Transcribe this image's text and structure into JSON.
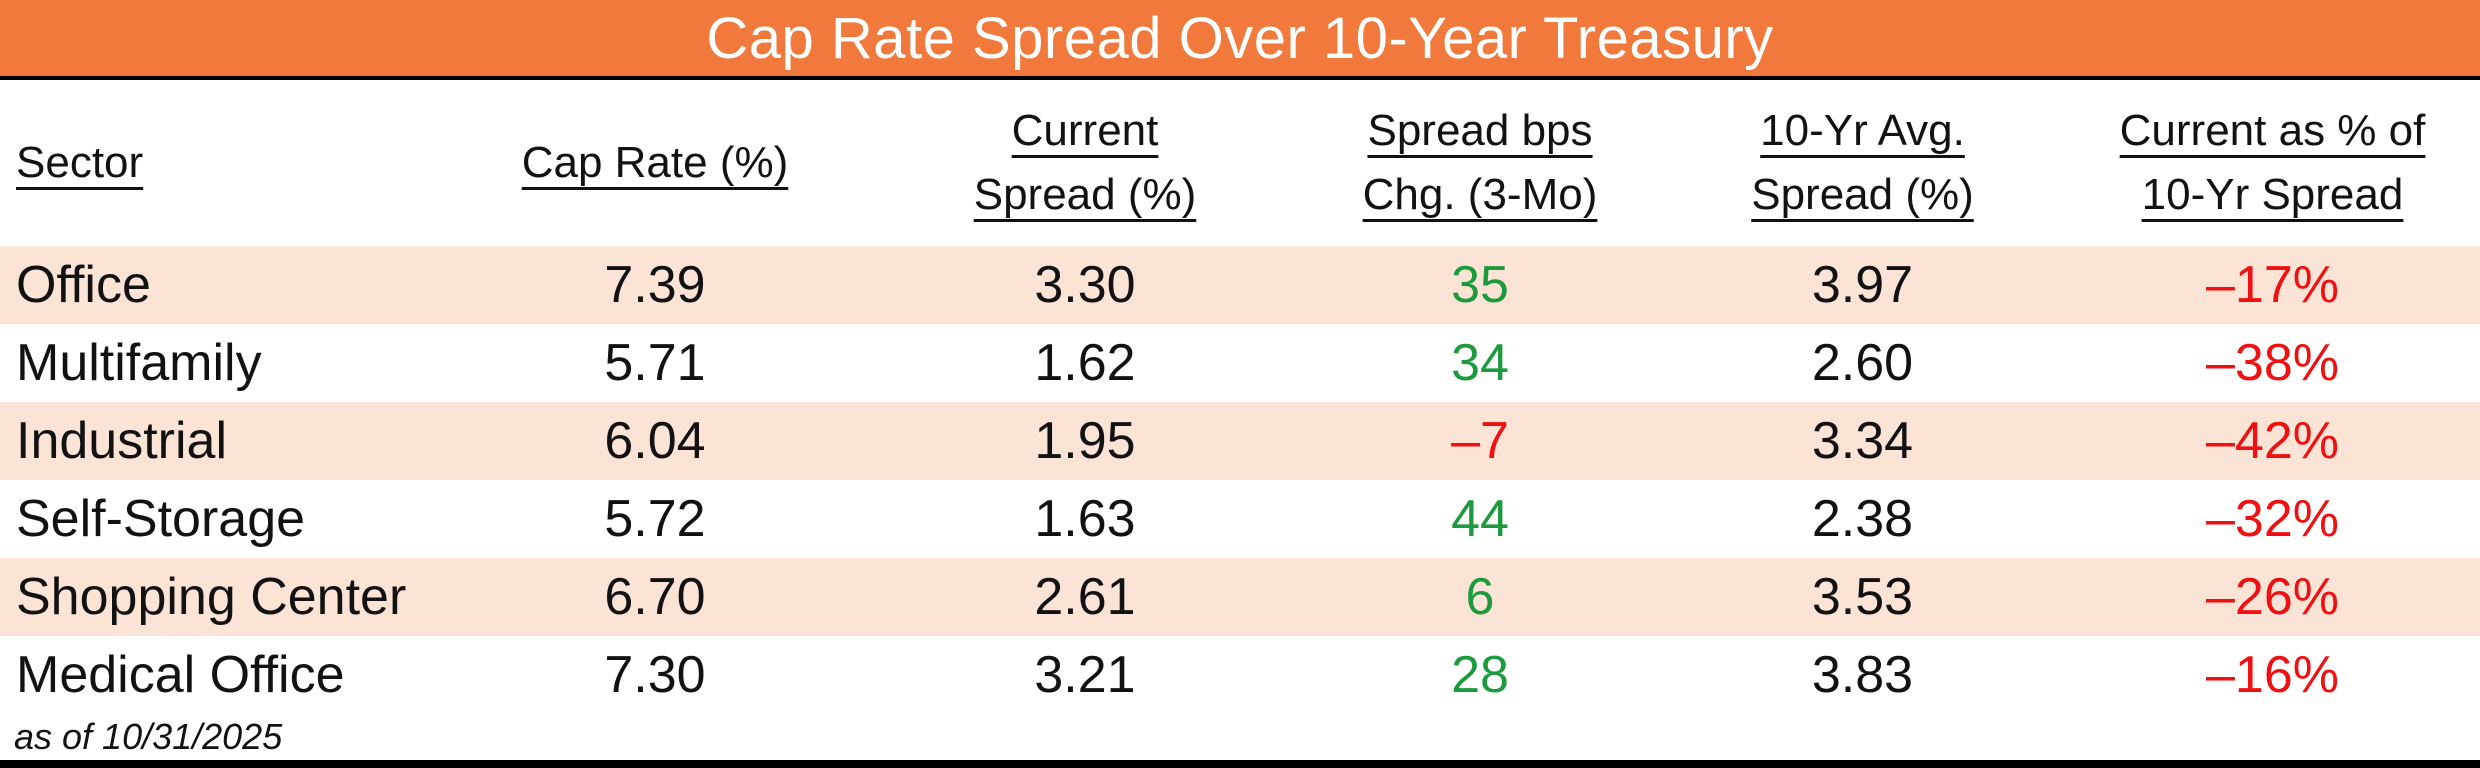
{
  "title": "Cap Rate Spread Over 10-Year Treasury",
  "footnote": "as of 10/31/2025",
  "colors": {
    "title_bar_orange": "#F0793B",
    "row_stripe_peach": "#FBE3D6",
    "positive_green": "#1E9A3E",
    "negative_red": "#EF1111",
    "text_ink": "#121212"
  },
  "table": {
    "headers": {
      "sector": "Sector",
      "cap_rate": "Cap Rate (%)",
      "current_spread": "Current\nSpread (%)",
      "bps_chg": "Spread bps\nChg. (3-Mo)",
      "avg_spread": "10-Yr Avg.\nSpread (%)",
      "pct_of_10yr": "Current as % of\n10-Yr Spread"
    },
    "rows": [
      {
        "sector": "Office",
        "cap_rate": "7.39",
        "current_spread": "3.30",
        "bps_chg": "35",
        "bps_sign": "pos",
        "avg_spread": "3.97",
        "pct_of_10yr": "–17%",
        "pct_sign": "neg"
      },
      {
        "sector": "Multifamily",
        "cap_rate": "5.71",
        "current_spread": "1.62",
        "bps_chg": "34",
        "bps_sign": "pos",
        "avg_spread": "2.60",
        "pct_of_10yr": "–38%",
        "pct_sign": "neg"
      },
      {
        "sector": "Industrial",
        "cap_rate": "6.04",
        "current_spread": "1.95",
        "bps_chg": "–7",
        "bps_sign": "neg",
        "avg_spread": "3.34",
        "pct_of_10yr": "–42%",
        "pct_sign": "neg"
      },
      {
        "sector": "Self-Storage",
        "cap_rate": "5.72",
        "current_spread": "1.63",
        "bps_chg": "44",
        "bps_sign": "pos",
        "avg_spread": "2.38",
        "pct_of_10yr": "–32%",
        "pct_sign": "neg"
      },
      {
        "sector": "Shopping Center",
        "cap_rate": "6.70",
        "current_spread": "2.61",
        "bps_chg": "6",
        "bps_sign": "pos",
        "avg_spread": "3.53",
        "pct_of_10yr": "–26%",
        "pct_sign": "neg"
      },
      {
        "sector": "Medical Office",
        "cap_rate": "7.30",
        "current_spread": "3.21",
        "bps_chg": "28",
        "bps_sign": "pos",
        "avg_spread": "3.83",
        "pct_of_10yr": "–16%",
        "pct_sign": "neg"
      }
    ]
  },
  "chart_data": {
    "type": "table",
    "title": "Cap Rate Spread Over 10-Year Treasury",
    "as_of": "10/31/2025",
    "columns": [
      "Sector",
      "Cap Rate (%)",
      "Current Spread (%)",
      "Spread bps Chg. (3-Mo)",
      "10-Yr Avg. Spread (%)",
      "Current as % of 10-Yr Spread"
    ],
    "rows": [
      [
        "Office",
        7.39,
        3.3,
        35,
        3.97,
        "-17%"
      ],
      [
        "Multifamily",
        5.71,
        1.62,
        34,
        2.6,
        "-38%"
      ],
      [
        "Industrial",
        6.04,
        1.95,
        -7,
        3.34,
        "-42%"
      ],
      [
        "Self-Storage",
        5.72,
        1.63,
        44,
        2.38,
        "-32%"
      ],
      [
        "Shopping Center",
        6.7,
        2.61,
        6,
        3.53,
        "-26%"
      ],
      [
        "Medical Office",
        7.3,
        3.21,
        28,
        3.83,
        "-16%"
      ]
    ],
    "notes": "Spread bps Chg. colored green when positive, red when negative; last column all red; odd data rows shaded peach"
  }
}
